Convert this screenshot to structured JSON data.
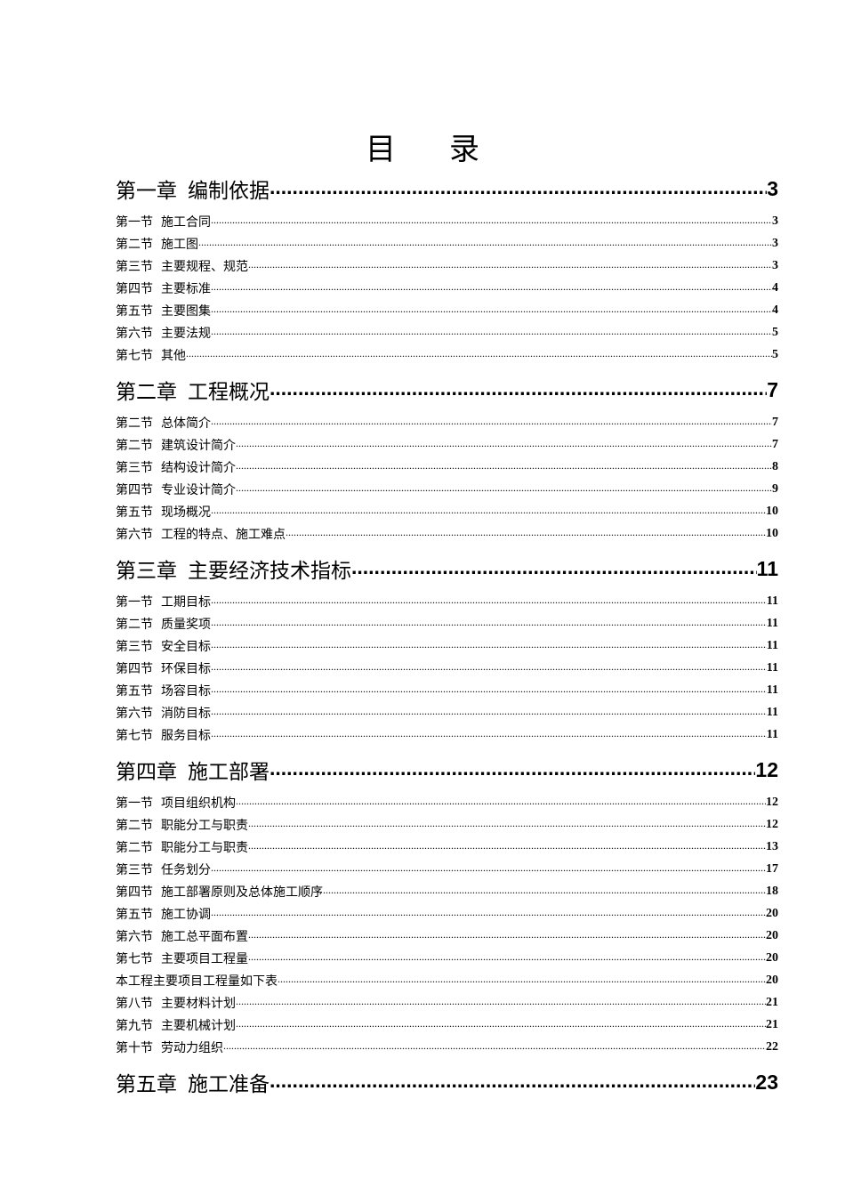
{
  "title": [
    "目",
    "录"
  ],
  "toc": [
    {
      "num": "第一章",
      "title": "编制依据",
      "page": "3",
      "sections": [
        {
          "num": "第一节",
          "title": "施工合同",
          "page": "3"
        },
        {
          "num": "第二节",
          "title": "施工图",
          "page": "3"
        },
        {
          "num": "第三节",
          "title": "主要规程、规范",
          "page": "3"
        },
        {
          "num": "第四节",
          "title": "主要标准",
          "page": "4"
        },
        {
          "num": "第五节",
          "title": "主要图集",
          "page": "4"
        },
        {
          "num": "第六节",
          "title": "主要法规",
          "page": "5"
        },
        {
          "num": "第七节",
          "title": "其他",
          "page": "5"
        }
      ]
    },
    {
      "num": "第二章",
      "title": "工程概况",
      "page": "7",
      "sections": [
        {
          "num": "第二节",
          "title": "总体简介",
          "page": "7"
        },
        {
          "num": "第二节",
          "title": "建筑设计简介",
          "page": "7"
        },
        {
          "num": "第三节",
          "title": "结构设计简介",
          "page": "8"
        },
        {
          "num": "第四节",
          "title": "专业设计简介",
          "page": "9"
        },
        {
          "num": "第五节",
          "title": "现场概况",
          "page": "10"
        },
        {
          "num": "第六节",
          "title": "工程的特点、施工难点",
          "page": "10"
        }
      ]
    },
    {
      "num": "第三章",
      "title": "主要经济技术指标",
      "page": "11",
      "sections": [
        {
          "num": "第一节",
          "title": "工期目标",
          "page": "11"
        },
        {
          "num": "第二节",
          "title": "质量奖项",
          "page": "11"
        },
        {
          "num": "第三节",
          "title": "安全目标",
          "page": "11"
        },
        {
          "num": "第四节",
          "title": "环保目标",
          "page": "11"
        },
        {
          "num": "第五节",
          "title": "场容目标",
          "page": "11"
        },
        {
          "num": "第六节",
          "title": "消防目标",
          "page": "11"
        },
        {
          "num": "第七节",
          "title": "服务目标",
          "page": "11"
        }
      ]
    },
    {
      "num": "第四章",
      "title": "施工部署",
      "page": "12",
      "sections": [
        {
          "num": "第一节",
          "title": "项目组织机构",
          "page": "12"
        },
        {
          "num": "第二节",
          "title": "职能分工与职责",
          "page": "12"
        },
        {
          "num": "第二节",
          "title": "职能分工与职责",
          "page": "13"
        },
        {
          "num": "第三节",
          "title": "任务划分",
          "page": "17"
        },
        {
          "num": "第四节",
          "title": "施工部署原则及总体施工顺序",
          "page": "18"
        },
        {
          "num": "第五节",
          "title": "施工协调",
          "page": "20"
        },
        {
          "num": "第六节",
          "title": "施工总平面布置",
          "page": "20"
        },
        {
          "num": "第七节",
          "title": "主要项目工程量",
          "page": "20"
        },
        {
          "num": "",
          "title": "本工程主要项目工程量如下表",
          "page": "20"
        },
        {
          "num": "第八节",
          "title": "主要材料计划",
          "page": "21"
        },
        {
          "num": "第九节",
          "title": "主要机械计划",
          "page": "21"
        },
        {
          "num": "第十节",
          "title": "劳动力组织",
          "page": "22"
        }
      ]
    },
    {
      "num": "第五章",
      "title": "施工准备",
      "page": "23",
      "sections": []
    }
  ]
}
